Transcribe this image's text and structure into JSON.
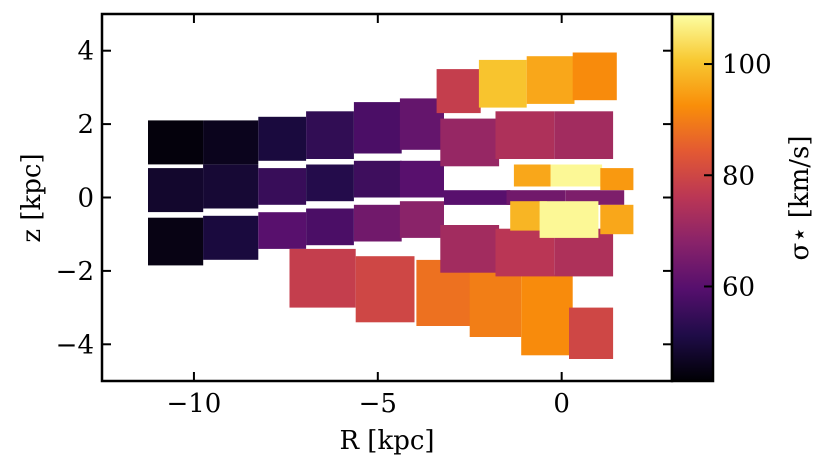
{
  "chart_data": {
    "type": "heatmap",
    "title": "",
    "xlabel": "R [kpc]",
    "ylabel": "z [kpc]",
    "xlim": [
      -12.5,
      3.0
    ],
    "ylim": [
      -5.0,
      5.0
    ],
    "xticks": [
      -10,
      -5,
      0
    ],
    "xtick_labels": [
      "−10",
      "−5",
      "0"
    ],
    "yticks": [
      -4,
      -2,
      0,
      2,
      4
    ],
    "ytick_labels": [
      "−4",
      "−2",
      "0",
      "2",
      "4"
    ],
    "colorbar": {
      "label": "σ⋆ [km/s]",
      "colormap": "inferno",
      "range": [
        43,
        109
      ],
      "ticks": [
        60,
        80,
        100
      ],
      "tick_labels": [
        "60",
        "80",
        "100"
      ]
    },
    "cells": [
      {
        "R": -10.5,
        "z": 1.5,
        "w": 1.5,
        "h": 1.2,
        "v": 44
      },
      {
        "R": -9.0,
        "z": 1.5,
        "w": 1.5,
        "h": 1.2,
        "v": 46
      },
      {
        "R": -7.6,
        "z": 1.6,
        "w": 1.3,
        "h": 1.2,
        "v": 50
      },
      {
        "R": -6.3,
        "z": 1.7,
        "w": 1.3,
        "h": 1.3,
        "v": 54
      },
      {
        "R": -5.0,
        "z": 1.9,
        "w": 1.3,
        "h": 1.4,
        "v": 58
      },
      {
        "R": -3.8,
        "z": 2.0,
        "w": 1.2,
        "h": 1.4,
        "v": 62
      },
      {
        "R": -10.5,
        "z": 0.2,
        "w": 1.5,
        "h": 1.2,
        "v": 48
      },
      {
        "R": -9.0,
        "z": 0.3,
        "w": 1.5,
        "h": 1.2,
        "v": 49
      },
      {
        "R": -7.6,
        "z": 0.3,
        "w": 1.3,
        "h": 1.0,
        "v": 55
      },
      {
        "R": -6.3,
        "z": 0.4,
        "w": 1.3,
        "h": 1.0,
        "v": 52
      },
      {
        "R": -5.0,
        "z": 0.5,
        "w": 1.3,
        "h": 1.0,
        "v": 56
      },
      {
        "R": -3.8,
        "z": 0.5,
        "w": 1.2,
        "h": 1.0,
        "v": 60
      },
      {
        "R": -10.5,
        "z": -1.2,
        "w": 1.5,
        "h": 1.3,
        "v": 45
      },
      {
        "R": -9.0,
        "z": -1.1,
        "w": 1.5,
        "h": 1.2,
        "v": 50
      },
      {
        "R": -7.6,
        "z": -0.9,
        "w": 1.3,
        "h": 1.0,
        "v": 60
      },
      {
        "R": -6.3,
        "z": -0.8,
        "w": 1.3,
        "h": 1.0,
        "v": 58
      },
      {
        "R": -5.0,
        "z": -0.7,
        "w": 1.3,
        "h": 1.0,
        "v": 64
      },
      {
        "R": -3.8,
        "z": -0.6,
        "w": 1.2,
        "h": 1.0,
        "v": 68
      },
      {
        "R": -6.5,
        "z": -2.2,
        "w": 1.8,
        "h": 1.6,
        "v": 78
      },
      {
        "R": -4.8,
        "z": -2.5,
        "w": 1.6,
        "h": 1.8,
        "v": 80
      },
      {
        "R": -3.2,
        "z": -2.6,
        "w": 1.5,
        "h": 1.8,
        "v": 88
      },
      {
        "R": -1.8,
        "z": -2.9,
        "w": 1.4,
        "h": 1.8,
        "v": 90
      },
      {
        "R": -0.4,
        "z": -3.2,
        "w": 1.4,
        "h": 2.2,
        "v": 92
      },
      {
        "R": 0.8,
        "z": -3.7,
        "w": 1.2,
        "h": 1.4,
        "v": 80
      },
      {
        "R": -2.8,
        "z": 2.9,
        "w": 1.2,
        "h": 1.2,
        "v": 78
      },
      {
        "R": -1.6,
        "z": 3.1,
        "w": 1.3,
        "h": 1.3,
        "v": 100
      },
      {
        "R": -0.3,
        "z": 3.2,
        "w": 1.3,
        "h": 1.3,
        "v": 96
      },
      {
        "R": 0.9,
        "z": 3.3,
        "w": 1.2,
        "h": 1.3,
        "v": 92
      },
      {
        "R": -2.5,
        "z": 1.5,
        "w": 1.6,
        "h": 1.3,
        "v": 70
      },
      {
        "R": -1.0,
        "z": 1.7,
        "w": 1.6,
        "h": 1.3,
        "v": 74
      },
      {
        "R": 0.6,
        "z": 1.7,
        "w": 1.6,
        "h": 1.3,
        "v": 72
      },
      {
        "R": -2.5,
        "z": -1.4,
        "w": 1.6,
        "h": 1.3,
        "v": 72
      },
      {
        "R": -1.0,
        "z": -1.5,
        "w": 1.6,
        "h": 1.3,
        "v": 76
      },
      {
        "R": 0.6,
        "z": -1.5,
        "w": 1.6,
        "h": 1.3,
        "v": 74
      },
      {
        "R": -2.3,
        "z": 0.0,
        "w": 1.8,
        "h": 0.4,
        "v": 60
      },
      {
        "R": -0.7,
        "z": 0.0,
        "w": 1.6,
        "h": 0.4,
        "v": 64
      },
      {
        "R": 0.9,
        "z": 0.0,
        "w": 1.6,
        "h": 0.4,
        "v": 66
      },
      {
        "R": -0.8,
        "z": 0.6,
        "w": 1.0,
        "h": 0.6,
        "v": 96
      },
      {
        "R": 0.4,
        "z": 0.6,
        "w": 1.4,
        "h": 0.6,
        "v": 108
      },
      {
        "R": 1.5,
        "z": 0.5,
        "w": 0.9,
        "h": 0.6,
        "v": 94
      },
      {
        "R": -0.9,
        "z": -0.5,
        "w": 1.0,
        "h": 0.8,
        "v": 98
      },
      {
        "R": 0.2,
        "z": -0.6,
        "w": 1.6,
        "h": 1.0,
        "v": 108
      },
      {
        "R": 1.5,
        "z": -0.6,
        "w": 0.9,
        "h": 0.8,
        "v": 96
      }
    ]
  }
}
